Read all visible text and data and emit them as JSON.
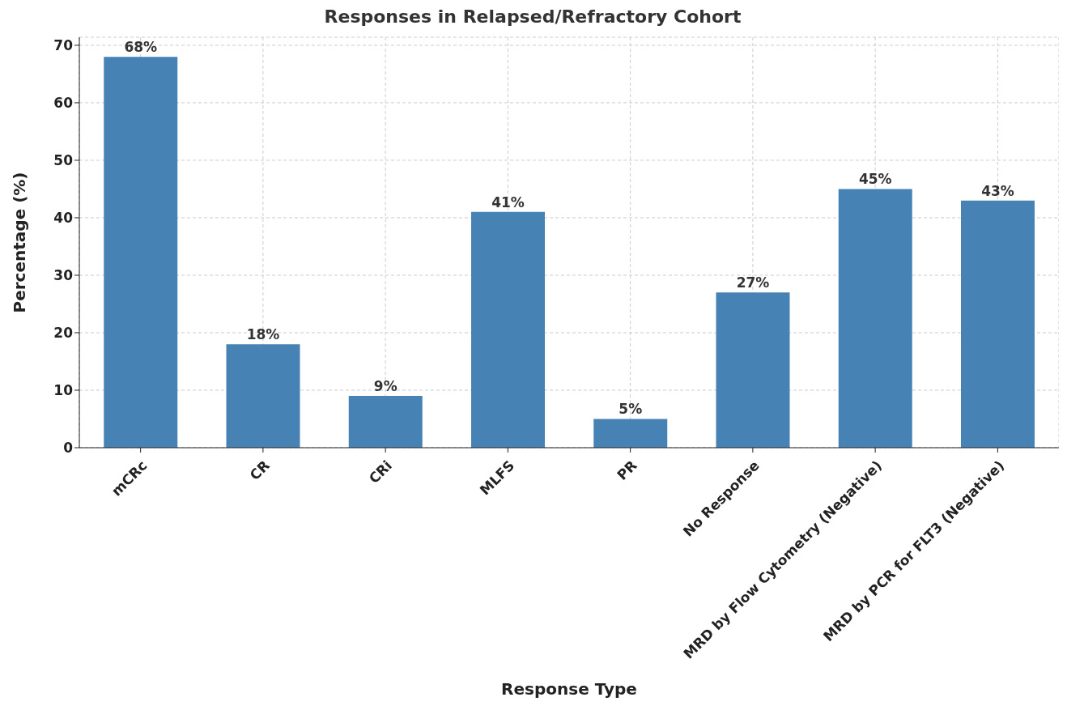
{
  "chart_data": {
    "type": "bar",
    "title": "Responses in Relapsed/Refractory Cohort",
    "xlabel": "Response Type",
    "ylabel": "Percentage (%)",
    "categories": [
      "mCRc",
      "CR",
      "CRi",
      "MLFS",
      "PR",
      "No Response",
      "MRD by Flow Cytometry (Negative)",
      "MRD by PCR for FLT3 (Negative)"
    ],
    "values": [
      68,
      18,
      9,
      41,
      5,
      27,
      45,
      43
    ],
    "value_labels": [
      "68%",
      "18%",
      "9%",
      "41%",
      "5%",
      "27%",
      "45%",
      "43%"
    ],
    "color": "#4682b4",
    "ylim": [
      0,
      71.4
    ],
    "yticks": [
      0,
      10,
      20,
      30,
      40,
      50,
      60,
      70
    ],
    "grid": true,
    "legend": false
  }
}
